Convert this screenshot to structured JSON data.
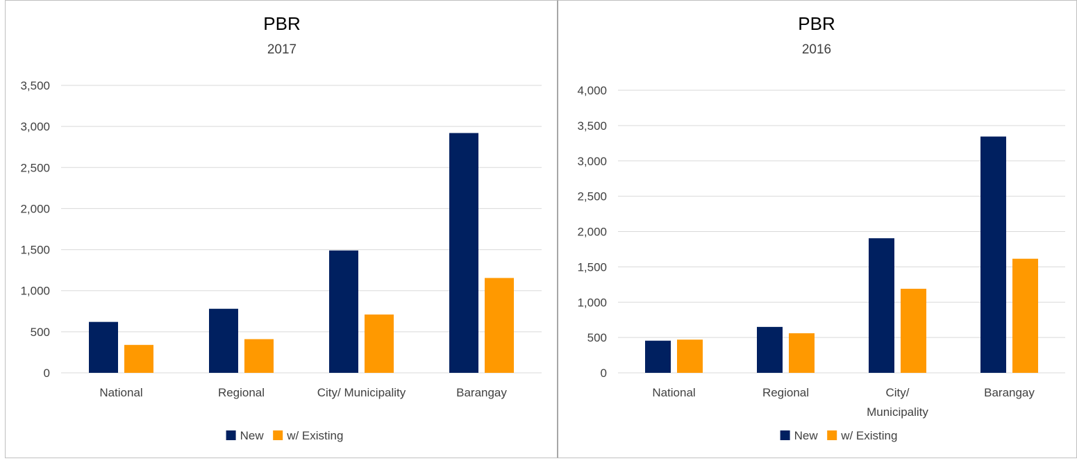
{
  "chart_data": [
    {
      "type": "bar",
      "title": "PBR",
      "subtitle": "2017",
      "categories": [
        [
          "National"
        ],
        [
          "Regional"
        ],
        [
          "City/ Municipality"
        ],
        [
          "Barangay"
        ]
      ],
      "series": [
        {
          "name": "New",
          "color": "#002060",
          "values": [
            620,
            780,
            1490,
            2920
          ]
        },
        {
          "name": "w/ Existing",
          "color": "#ff9900",
          "values": [
            340,
            410,
            710,
            1155
          ]
        }
      ],
      "ylim": [
        0,
        3500
      ],
      "yticks": [
        "0",
        "500",
        "1,000",
        "1,500",
        "2,000",
        "2,500",
        "3,000",
        "3,500"
      ],
      "grid": true,
      "legend": "bottom"
    },
    {
      "type": "bar",
      "title": "PBR",
      "subtitle": "2016",
      "categories": [
        [
          "National"
        ],
        [
          "Regional"
        ],
        [
          "City/",
          "Municipality"
        ],
        [
          "Barangay"
        ]
      ],
      "series": [
        {
          "name": "New",
          "color": "#002060",
          "values": [
            455,
            650,
            1905,
            3345
          ]
        },
        {
          "name": "w/ Existing",
          "color": "#ff9900",
          "values": [
            470,
            560,
            1190,
            1615
          ]
        }
      ],
      "ylim": [
        0,
        4000
      ],
      "yticks": [
        "0",
        "500",
        "1,000",
        "1,500",
        "2,000",
        "2,500",
        "3,000",
        "3,500",
        "4,000"
      ],
      "grid": true,
      "legend": "bottom"
    }
  ]
}
